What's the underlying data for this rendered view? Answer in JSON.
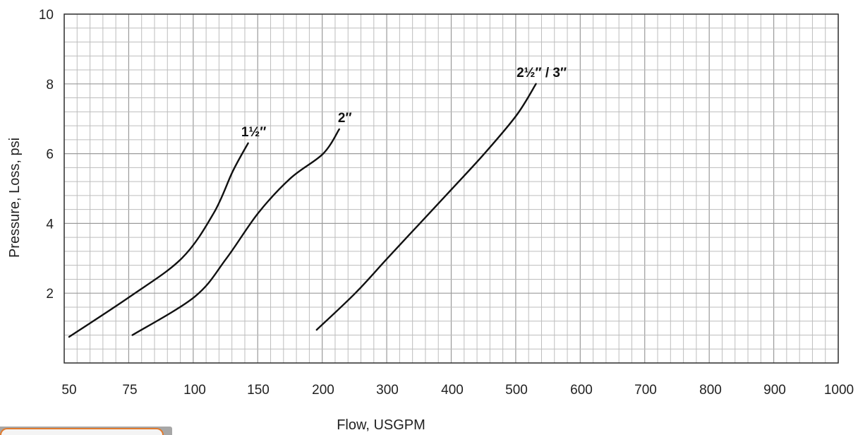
{
  "chart_data": {
    "type": "line",
    "title": "",
    "xlabel": "Flow, USGPM",
    "ylabel": "Pressure, Loss, psi",
    "x_scale": "custom-segmented",
    "x_ticks": [
      50,
      75,
      100,
      150,
      200,
      300,
      400,
      500,
      600,
      700,
      800,
      900,
      1000
    ],
    "x_tick_labels": [
      "50",
      "75",
      "100",
      "150",
      "200",
      "300",
      "400",
      "500",
      "600",
      "700",
      "800",
      "900",
      "1000"
    ],
    "y_ticks": [
      2,
      4,
      6,
      8,
      10
    ],
    "y_tick_labels": [
      "2",
      "4",
      "6",
      "8",
      "10"
    ],
    "ylim": [
      0,
      10
    ],
    "xlim": [
      50,
      1000
    ],
    "grid": true,
    "legend": "none (labels on curves)",
    "series": [
      {
        "name": "1½″",
        "points": [
          [
            50,
            0.75
          ],
          [
            75,
            1.9
          ],
          [
            95,
            3.0
          ],
          [
            115,
            4.3
          ],
          [
            130,
            5.5
          ],
          [
            142,
            6.3
          ]
        ]
      },
      {
        "name": "2″",
        "points": [
          [
            76,
            0.8
          ],
          [
            100,
            1.9
          ],
          [
            125,
            3.0
          ],
          [
            150,
            4.3
          ],
          [
            175,
            5.3
          ],
          [
            200,
            6.0
          ],
          [
            225,
            6.7
          ]
        ]
      },
      {
        "name": "2½″ / 3″",
        "points": [
          [
            195,
            0.95
          ],
          [
            250,
            2.0
          ],
          [
            300,
            3.0
          ],
          [
            350,
            4.0
          ],
          [
            400,
            5.0
          ],
          [
            450,
            6.0
          ],
          [
            500,
            7.1
          ],
          [
            530,
            8.0
          ]
        ]
      }
    ]
  }
}
